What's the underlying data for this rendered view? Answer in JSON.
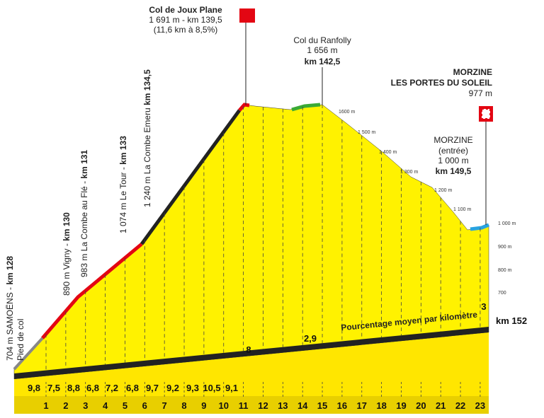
{
  "climb": {
    "summit": {
      "name": "Col de Joux Plane",
      "detail": "1 691 m - km 139,5",
      "note": "(11,6 km à 8,5%)"
    },
    "pass": {
      "name": "Col du Ranfolly",
      "altitude": "1 656 m",
      "km": "km 142,5"
    },
    "finish": {
      "line1": "MORZINE",
      "line2": "LES PORTES DU SOLEIL",
      "altitude": "977 m"
    },
    "entry": {
      "name": "MORZINE",
      "note": "(entrée)",
      "altitude": "1 000 m",
      "km": "km 149,5"
    },
    "waypoints": [
      {
        "place": "704 m SAMOËNS - ",
        "km": "km 128",
        "note": "Pied de col"
      },
      {
        "place": "890 m Vigny - ",
        "km": "km 130"
      },
      {
        "place": "983 m La Combe au Flé - ",
        "km": "km 131"
      },
      {
        "place": "1 074 m Le Tour - ",
        "km": "km 133"
      },
      {
        "place": "1 240 m La Combe Emeru ",
        "km": "km 134,5"
      }
    ],
    "altitude_labels": [
      "1600 m",
      "1 500 m",
      "1 400 m",
      "1 300 m",
      "1 200 m",
      "1 100 m",
      "1 000 m",
      "900 m",
      "800 m",
      "700"
    ],
    "km_markers": [
      "1",
      "2",
      "3",
      "4",
      "5",
      "6",
      "7",
      "8",
      "9",
      "10",
      "11",
      "12",
      "13",
      "14",
      "15",
      "16",
      "17",
      "18",
      "19",
      "20",
      "21",
      "22",
      "23"
    ],
    "gradients": [
      "9,8",
      "7,5",
      "8,8",
      "6,8",
      "7,2",
      "6,8",
      "9,7",
      "9,2",
      "9,3",
      "10,5",
      "9,1",
      "8",
      "2,9",
      "3"
    ],
    "gradient_caption": "Pourcentage moyen par kilomètre",
    "end_km": "km 152"
  }
}
